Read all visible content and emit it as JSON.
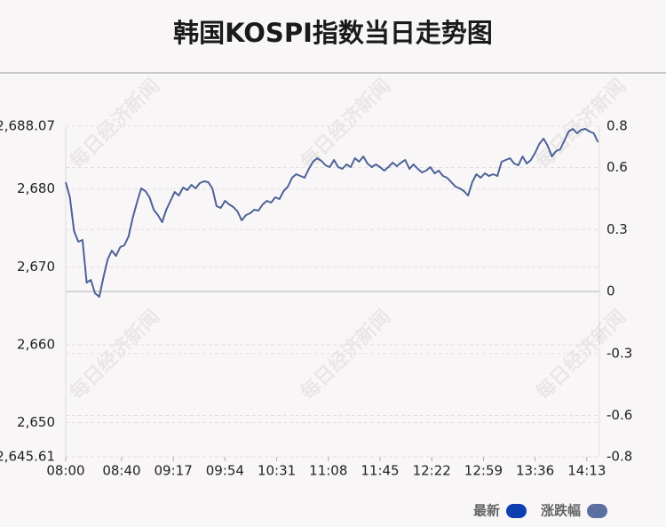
{
  "chart_data": {
    "type": "line",
    "title": "韩国KOSPI指数当日走势图",
    "watermark": "每日经济新闻",
    "legend": [
      {
        "name": "最新",
        "color": "#0d3eb0"
      },
      {
        "name": "涨跌幅",
        "color": "#5b6fa0"
      }
    ],
    "xlim": [
      "08:00",
      "14:22"
    ],
    "xticks": [
      "08:00",
      "08:40",
      "09:17",
      "09:54",
      "10:31",
      "11:08",
      "11:45",
      "12:22",
      "12:59",
      "13:36",
      "14:13"
    ],
    "ylim": [
      2645.61,
      2688.07
    ],
    "yticks": [
      {
        "value": 2688.07,
        "label": "2,688.07"
      },
      {
        "value": 2680,
        "label": "2,680"
      },
      {
        "value": 2670,
        "label": "2,670"
      },
      {
        "value": 2660,
        "label": "2,660"
      },
      {
        "value": 2650,
        "label": "2,650"
      },
      {
        "value": 2645.61,
        "label": "2,645.61"
      }
    ],
    "y2lim": [
      -0.8,
      0.8
    ],
    "y2ticks": [
      0.8,
      0.6,
      0.3,
      0,
      -0.3,
      -0.6,
      -0.8
    ],
    "x": [
      "08:00",
      "08:03",
      "08:06",
      "08:09",
      "08:12",
      "08:15",
      "08:18",
      "08:21",
      "08:24",
      "08:27",
      "08:30",
      "08:33",
      "08:36",
      "08:39",
      "08:42",
      "08:45",
      "08:48",
      "08:51",
      "08:54",
      "08:57",
      "09:00",
      "09:03",
      "09:06",
      "09:09",
      "09:12",
      "09:15",
      "09:18",
      "09:21",
      "09:24",
      "09:27",
      "09:30",
      "09:33",
      "09:36",
      "09:39",
      "09:42",
      "09:45",
      "09:48",
      "09:51",
      "09:54",
      "09:57",
      "10:00",
      "10:03",
      "10:06",
      "10:09",
      "10:12",
      "10:15",
      "10:18",
      "10:21",
      "10:24",
      "10:27",
      "10:30",
      "10:33",
      "10:36",
      "10:39",
      "10:42",
      "10:45",
      "10:48",
      "10:51",
      "10:54",
      "10:57",
      "11:00",
      "11:03",
      "11:06",
      "11:09",
      "11:12",
      "11:15",
      "11:18",
      "11:21",
      "11:24",
      "11:27",
      "11:30",
      "11:33",
      "11:36",
      "11:39",
      "11:42",
      "11:45",
      "11:48",
      "11:51",
      "11:54",
      "11:57",
      "12:00",
      "12:03",
      "12:06",
      "12:09",
      "12:12",
      "12:15",
      "12:18",
      "12:21",
      "12:24",
      "12:27",
      "12:30",
      "12:33",
      "12:36",
      "12:39",
      "12:42",
      "12:45",
      "12:48",
      "12:51",
      "12:54",
      "12:57",
      "13:00",
      "13:03",
      "13:06",
      "13:09",
      "13:12",
      "13:15",
      "13:18",
      "13:21",
      "13:24",
      "13:27",
      "13:30",
      "13:33",
      "13:36",
      "13:39",
      "13:42",
      "13:45",
      "13:48",
      "13:51",
      "13:54",
      "13:57",
      "14:00",
      "14:03",
      "14:06",
      "14:09",
      "14:12",
      "14:15",
      "14:18",
      "14:21"
    ],
    "series": [
      {
        "color": "#4c6296",
        "values": [
          2680.88,
          2678.94,
          2674.6,
          2673.23,
          2673.46,
          2667.98,
          2668.32,
          2666.61,
          2666.16,
          2668.67,
          2670.95,
          2672.09,
          2671.41,
          2672.55,
          2672.78,
          2673.92,
          2676.31,
          2678.25,
          2680.08,
          2679.74,
          2678.94,
          2677.34,
          2676.66,
          2675.74,
          2677.34,
          2678.48,
          2679.62,
          2679.17,
          2680.19,
          2679.85,
          2680.54,
          2680.08,
          2680.77,
          2680.99,
          2680.88,
          2680.08,
          2677.8,
          2677.57,
          2678.48,
          2678.03,
          2677.68,
          2677.11,
          2675.97,
          2676.66,
          2676.88,
          2677.34,
          2677.23,
          2678.03,
          2678.48,
          2678.25,
          2678.94,
          2678.71,
          2679.74,
          2680.31,
          2681.45,
          2681.91,
          2681.68,
          2681.45,
          2682.59,
          2683.5,
          2683.96,
          2683.62,
          2683.05,
          2682.82,
          2683.73,
          2682.82,
          2682.59,
          2683.16,
          2682.82,
          2683.96,
          2683.5,
          2684.19,
          2683.28,
          2682.82,
          2683.16,
          2682.82,
          2682.36,
          2682.82,
          2683.39,
          2682.93,
          2683.39,
          2683.73,
          2682.59,
          2683.16,
          2682.59,
          2682.13,
          2682.36,
          2682.82,
          2682.02,
          2682.36,
          2681.68,
          2681.45,
          2680.88,
          2680.31,
          2680.08,
          2679.74,
          2679.17,
          2680.88,
          2681.91,
          2681.45,
          2682.02,
          2681.68,
          2681.91,
          2681.68,
          2683.5,
          2683.73,
          2683.96,
          2683.28,
          2683.05,
          2684.19,
          2683.28,
          2683.73,
          2684.65,
          2685.79,
          2686.47,
          2685.56,
          2684.19,
          2684.87,
          2685.1,
          2686.24,
          2687.39,
          2687.73,
          2687.16,
          2687.61,
          2687.73,
          2687.39,
          2687.16,
          2686.02
        ]
      }
    ],
    "grid": true
  }
}
